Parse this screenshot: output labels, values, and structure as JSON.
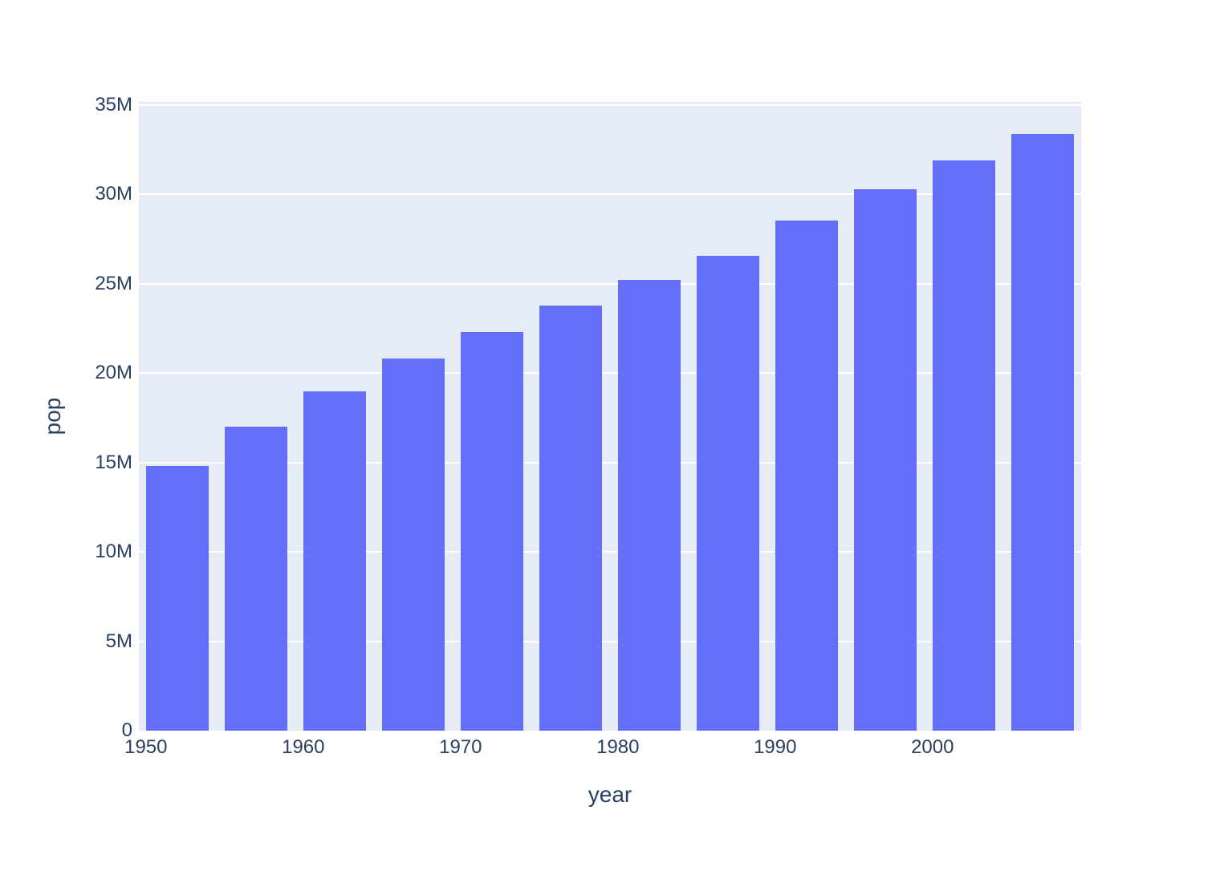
{
  "chart_data": {
    "type": "bar",
    "title": "",
    "xlabel": "year",
    "ylabel": "pop",
    "x": [
      1952,
      1957,
      1962,
      1967,
      1972,
      1977,
      1982,
      1987,
      1992,
      1997,
      2002,
      2007
    ],
    "values": [
      14785584,
      17010154,
      18985849,
      20819767,
      22284500,
      23796400,
      25201900,
      26549700,
      28523502,
      30305843,
      31902268,
      33390141
    ],
    "xlim": [
      1949.55,
      2009.45
    ],
    "ylim": [
      0,
      35180000
    ],
    "bar_width_years": 4.0,
    "x_ticks": [
      {
        "value": 1950,
        "label": "1950"
      },
      {
        "value": 1960,
        "label": "1960"
      },
      {
        "value": 1970,
        "label": "1970"
      },
      {
        "value": 1980,
        "label": "1980"
      },
      {
        "value": 1990,
        "label": "1990"
      },
      {
        "value": 2000,
        "label": "2000"
      }
    ],
    "y_ticks": [
      {
        "value": 0,
        "label": "0"
      },
      {
        "value": 5000000,
        "label": "5M"
      },
      {
        "value": 10000000,
        "label": "10M"
      },
      {
        "value": 15000000,
        "label": "15M"
      },
      {
        "value": 20000000,
        "label": "20M"
      },
      {
        "value": 25000000,
        "label": "25M"
      },
      {
        "value": 30000000,
        "label": "30M"
      },
      {
        "value": 35000000,
        "label": "35M"
      }
    ],
    "grid": true,
    "legend_position": "none",
    "colors": {
      "bar": "#636EFA",
      "plot_background": "#E5ECF6",
      "gridline": "#FFFFFF",
      "text": "#2A3F5F",
      "page_background": "#FFFFFF"
    }
  }
}
